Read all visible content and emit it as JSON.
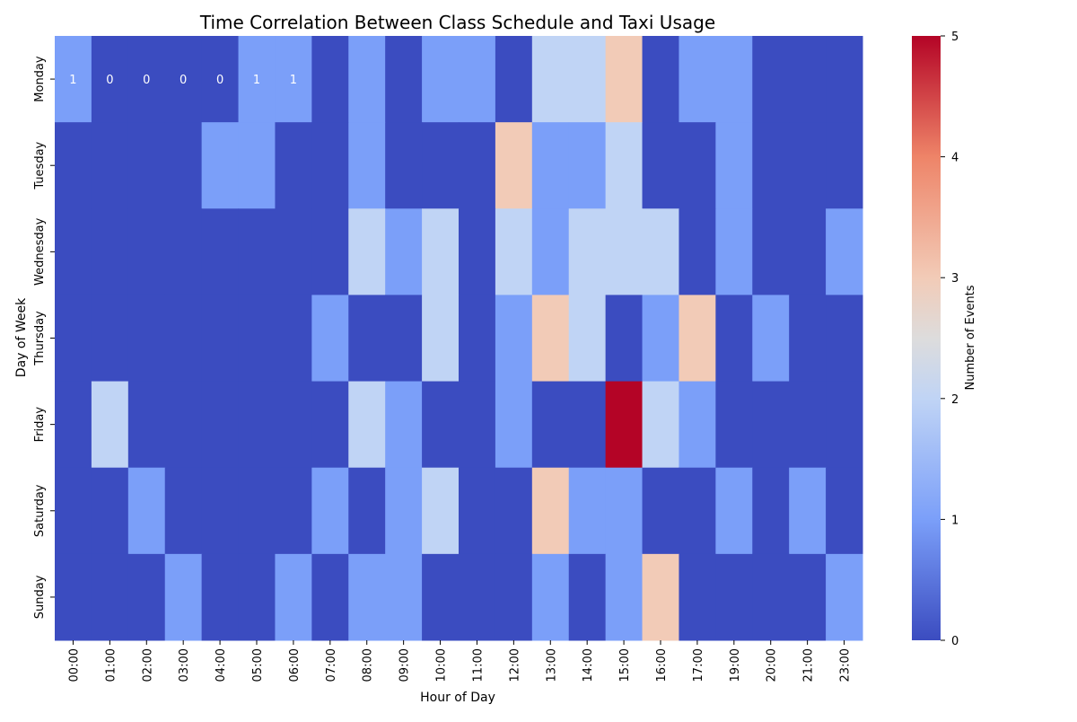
{
  "chart_data": {
    "type": "heatmap",
    "title": "Time Correlation Between Class Schedule and Taxi Usage",
    "xlabel": "Hour of Day",
    "ylabel": "Day of Week",
    "x": [
      "00:00",
      "01:00",
      "02:00",
      "03:00",
      "04:00",
      "05:00",
      "06:00",
      "07:00",
      "08:00",
      "09:00",
      "10:00",
      "11:00",
      "12:00",
      "13:00",
      "14:00",
      "15:00",
      "16:00",
      "17:00",
      "19:00",
      "20:00",
      "21:00",
      "23:00"
    ],
    "y": [
      "Monday",
      "Tuesday",
      "Wednesday",
      "Thursday",
      "Friday",
      "Saturday",
      "Sunday"
    ],
    "values": [
      [
        1,
        0,
        0,
        0,
        0,
        1,
        1,
        0,
        1,
        0,
        1,
        1,
        0,
        2,
        2,
        3,
        0,
        1,
        1,
        0,
        0,
        0
      ],
      [
        0,
        0,
        0,
        0,
        1,
        1,
        0,
        0,
        1,
        0,
        0,
        0,
        3,
        1,
        1,
        2,
        0,
        0,
        1,
        0,
        0,
        0
      ],
      [
        0,
        0,
        0,
        0,
        0,
        0,
        0,
        0,
        2,
        1,
        2,
        0,
        2,
        1,
        2,
        2,
        2,
        0,
        1,
        0,
        0,
        1
      ],
      [
        0,
        0,
        0,
        0,
        0,
        0,
        0,
        1,
        0,
        0,
        2,
        0,
        1,
        3,
        2,
        0,
        1,
        3,
        0,
        1,
        0,
        0
      ],
      [
        0,
        2,
        0,
        0,
        0,
        0,
        0,
        0,
        2,
        1,
        0,
        0,
        1,
        0,
        0,
        5,
        2,
        1,
        0,
        0,
        0,
        0
      ],
      [
        0,
        0,
        1,
        0,
        0,
        0,
        0,
        1,
        0,
        1,
        2,
        0,
        0,
        3,
        1,
        1,
        0,
        0,
        1,
        0,
        1,
        0
      ],
      [
        0,
        0,
        0,
        1,
        0,
        0,
        1,
        0,
        1,
        1,
        0,
        0,
        0,
        1,
        0,
        1,
        3,
        0,
        0,
        0,
        0,
        1
      ]
    ],
    "annotated_values": {
      "row": "Monday",
      "labels": [
        "1",
        "0",
        "0",
        "0",
        "0",
        "1",
        "1"
      ]
    },
    "colorbar": {
      "label": "Number of Events",
      "range": [
        0,
        5
      ],
      "ticks": [
        "0",
        "1",
        "2",
        "3",
        "4",
        "5"
      ],
      "colormap": "coolwarm"
    }
  }
}
